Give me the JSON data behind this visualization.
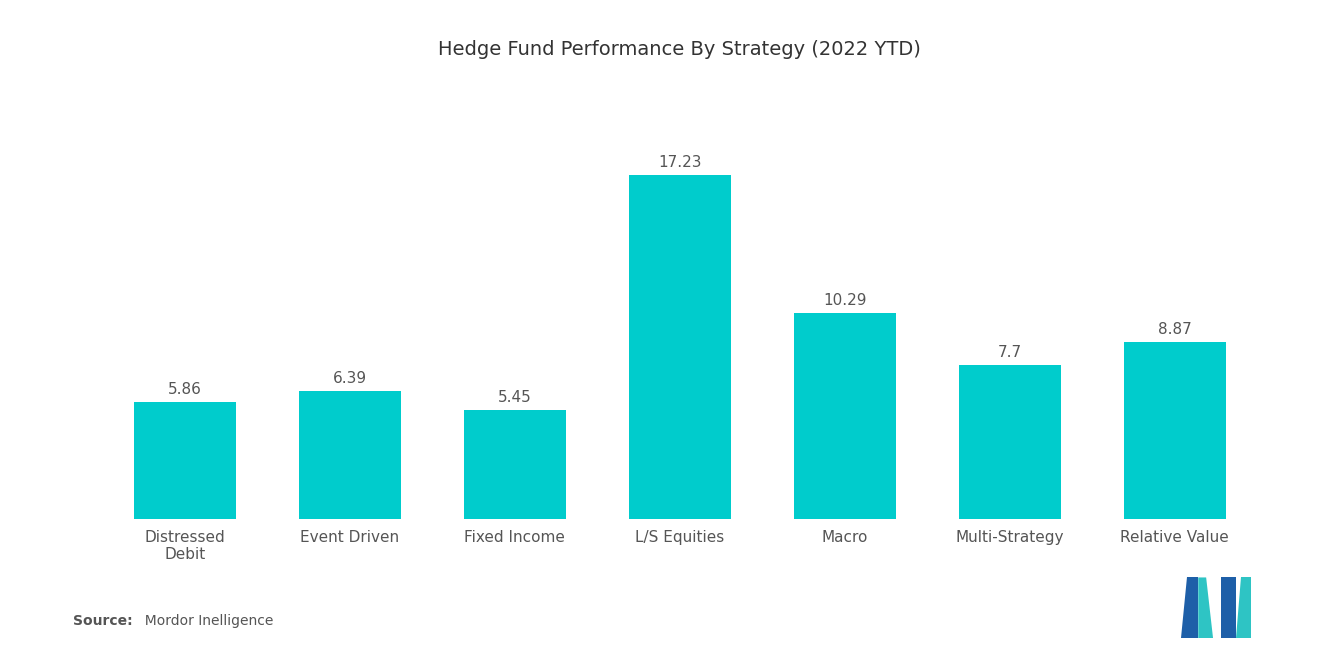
{
  "title": "Hedge Fund Performance By Strategy (2022 YTD)",
  "categories": [
    "Distressed\nDebit",
    "Event Driven",
    "Fixed Income",
    "L/S Equities",
    "Macro",
    "Multi-Strategy",
    "Relative Value"
  ],
  "values": [
    5.86,
    6.39,
    5.45,
    17.23,
    10.29,
    7.7,
    8.87
  ],
  "bar_color": "#00CCCC",
  "background_color": "#ffffff",
  "title_fontsize": 14,
  "label_fontsize": 11,
  "value_fontsize": 11,
  "source_bold": "Source:",
  "source_regular": "  Mordor Inelligence",
  "ylim": [
    0,
    22
  ],
  "bar_width": 0.62,
  "logo_blue": "#1E5FA8",
  "logo_teal": "#2EC4C4"
}
